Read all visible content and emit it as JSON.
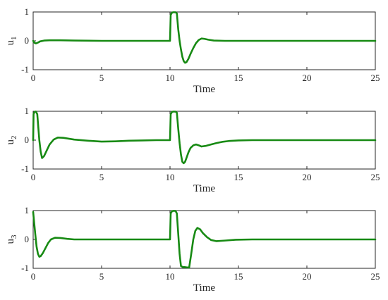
{
  "chart_data": [
    {
      "type": "line",
      "xlabel": "Time",
      "ylabel": "u",
      "ylabel_sub": "1",
      "xlim": [
        0,
        25
      ],
      "ylim": [
        -1,
        1
      ],
      "xticks": [
        "0",
        "5",
        "10",
        "15",
        "20",
        "25"
      ],
      "yticks": [
        "-1",
        "0",
        "1"
      ],
      "series": [
        {
          "color": "#178a13",
          "x": [
            0,
            0.1,
            0.2,
            0.35,
            0.5,
            0.8,
            1.2,
            2,
            3,
            5,
            7,
            9,
            10,
            10.05,
            10.15,
            10.25,
            10.4,
            10.5,
            10.6,
            10.7,
            10.8,
            10.9,
            11.0,
            11.1,
            11.2,
            11.35,
            11.5,
            11.7,
            11.9,
            12.1,
            12.3,
            12.5,
            12.8,
            13.2,
            14,
            15,
            17,
            20,
            25
          ],
          "y": [
            0,
            -0.07,
            -0.09,
            -0.06,
            -0.02,
            0.01,
            0.02,
            0.02,
            0.01,
            0,
            0,
            0,
            0,
            0.9,
            0.98,
            0.99,
            0.99,
            0.95,
            0.4,
            0.0,
            -0.3,
            -0.55,
            -0.7,
            -0.76,
            -0.74,
            -0.62,
            -0.45,
            -0.25,
            -0.08,
            0.03,
            0.08,
            0.07,
            0.04,
            0.01,
            0,
            0,
            0,
            0,
            0
          ]
        }
      ]
    },
    {
      "type": "line",
      "xlabel": "Time",
      "ylabel": "u",
      "ylabel_sub": "2",
      "xlim": [
        0,
        25
      ],
      "ylim": [
        -1,
        1
      ],
      "xticks": [
        "0",
        "5",
        "10",
        "15",
        "20",
        "25"
      ],
      "yticks": [
        "-1",
        "0",
        "1"
      ],
      "series": [
        {
          "color": "#178a13",
          "x": [
            0,
            0.03,
            0.1,
            0.2,
            0.3,
            0.35,
            0.45,
            0.55,
            0.65,
            0.8,
            1.0,
            1.2,
            1.5,
            1.8,
            2.2,
            3,
            4,
            5,
            6,
            7,
            8,
            9,
            10,
            10.05,
            10.15,
            10.25,
            10.4,
            10.5,
            10.6,
            10.7,
            10.8,
            10.9,
            11.0,
            11.1,
            11.2,
            11.35,
            11.5,
            11.7,
            11.9,
            12.1,
            12.3,
            12.6,
            13.0,
            13.4,
            13.8,
            14.3,
            15,
            16,
            18,
            20,
            25
          ],
          "y": [
            0,
            0.9,
            0.98,
            0.99,
            0.9,
            0.6,
            0.0,
            -0.4,
            -0.62,
            -0.55,
            -0.35,
            -0.15,
            0.02,
            0.09,
            0.08,
            0.02,
            -0.02,
            -0.05,
            -0.04,
            -0.02,
            -0.01,
            0,
            0,
            0.9,
            0.98,
            0.99,
            0.99,
            0.95,
            0.4,
            -0.1,
            -0.5,
            -0.75,
            -0.8,
            -0.75,
            -0.62,
            -0.42,
            -0.27,
            -0.18,
            -0.15,
            -0.18,
            -0.22,
            -0.2,
            -0.15,
            -0.1,
            -0.06,
            -0.03,
            -0.01,
            0,
            0,
            0,
            0
          ]
        }
      ]
    },
    {
      "type": "line",
      "xlabel": "Time",
      "ylabel": "u",
      "ylabel_sub": "3",
      "xlim": [
        0,
        25
      ],
      "ylim": [
        -1,
        1
      ],
      "xticks": [
        "0",
        "5",
        "10",
        "15",
        "20",
        "25"
      ],
      "yticks": [
        "-1",
        "0",
        "1"
      ],
      "series": [
        {
          "color": "#178a13",
          "x": [
            0,
            0.05,
            0.15,
            0.25,
            0.35,
            0.45,
            0.55,
            0.7,
            0.9,
            1.1,
            1.3,
            1.6,
            2,
            2.5,
            3,
            4,
            5,
            7,
            9,
            10,
            10.05,
            10.15,
            10.25,
            10.4,
            10.5,
            10.6,
            10.7,
            10.8,
            10.95,
            11.1,
            11.25,
            11.4,
            11.55,
            11.7,
            11.85,
            12.0,
            12.2,
            12.4,
            12.7,
            13.0,
            13.4,
            14,
            14.8,
            16,
            18,
            20,
            25
          ],
          "y": [
            0.95,
            0.7,
            0.2,
            -0.25,
            -0.5,
            -0.6,
            -0.58,
            -0.48,
            -0.3,
            -0.12,
            0.0,
            0.06,
            0.05,
            0.02,
            0,
            0,
            0,
            0,
            0,
            0,
            0.9,
            0.98,
            0.99,
            0.99,
            0.9,
            0.2,
            -0.5,
            -0.92,
            -0.96,
            -0.96,
            -0.97,
            -0.97,
            -0.5,
            0.0,
            0.3,
            0.4,
            0.35,
            0.22,
            0.08,
            -0.02,
            -0.06,
            -0.04,
            -0.01,
            0,
            0,
            0,
            0
          ]
        }
      ]
    }
  ]
}
